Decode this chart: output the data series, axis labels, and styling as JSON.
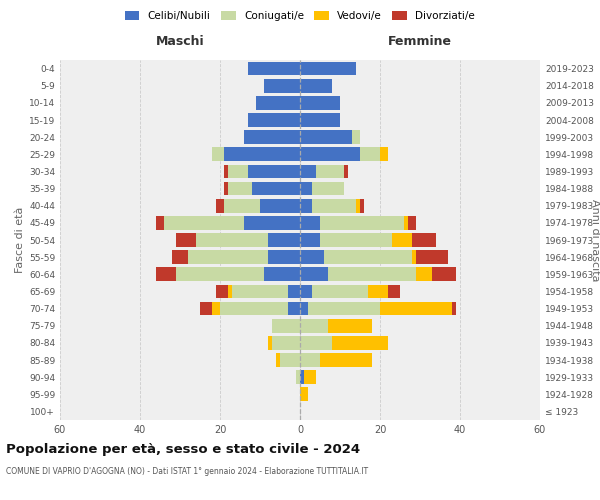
{
  "age_groups": [
    "100+",
    "95-99",
    "90-94",
    "85-89",
    "80-84",
    "75-79",
    "70-74",
    "65-69",
    "60-64",
    "55-59",
    "50-54",
    "45-49",
    "40-44",
    "35-39",
    "30-34",
    "25-29",
    "20-24",
    "15-19",
    "10-14",
    "5-9",
    "0-4"
  ],
  "birth_years": [
    "≤ 1923",
    "1924-1928",
    "1929-1933",
    "1934-1938",
    "1939-1943",
    "1944-1948",
    "1949-1953",
    "1954-1958",
    "1959-1963",
    "1964-1968",
    "1969-1973",
    "1974-1978",
    "1979-1983",
    "1984-1988",
    "1989-1993",
    "1994-1998",
    "1999-2003",
    "2004-2008",
    "2009-2013",
    "2014-2018",
    "2019-2023"
  ],
  "maschi": {
    "celibi": [
      0,
      0,
      0,
      0,
      0,
      0,
      3,
      3,
      9,
      8,
      8,
      14,
      10,
      12,
      13,
      19,
      14,
      13,
      11,
      9,
      13
    ],
    "coniugati": [
      0,
      0,
      1,
      5,
      7,
      7,
      17,
      14,
      22,
      20,
      18,
      20,
      9,
      6,
      5,
      3,
      0,
      0,
      0,
      0,
      0
    ],
    "vedovi": [
      0,
      0,
      0,
      1,
      1,
      0,
      2,
      1,
      0,
      0,
      0,
      0,
      0,
      0,
      0,
      0,
      0,
      0,
      0,
      0,
      0
    ],
    "divorziati": [
      0,
      0,
      0,
      0,
      0,
      0,
      3,
      3,
      5,
      4,
      5,
      2,
      2,
      1,
      1,
      0,
      0,
      0,
      0,
      0,
      0
    ]
  },
  "femmine": {
    "nubili": [
      0,
      0,
      1,
      0,
      0,
      0,
      2,
      3,
      7,
      6,
      5,
      5,
      3,
      3,
      4,
      15,
      13,
      10,
      10,
      8,
      14
    ],
    "coniugate": [
      0,
      0,
      0,
      5,
      8,
      7,
      18,
      14,
      22,
      22,
      18,
      21,
      11,
      8,
      7,
      5,
      2,
      0,
      0,
      0,
      0
    ],
    "vedove": [
      0,
      2,
      3,
      13,
      14,
      11,
      18,
      5,
      4,
      1,
      5,
      1,
      1,
      0,
      0,
      2,
      0,
      0,
      0,
      0,
      0
    ],
    "divorziate": [
      0,
      0,
      0,
      0,
      0,
      0,
      1,
      3,
      6,
      8,
      6,
      2,
      1,
      0,
      1,
      0,
      0,
      0,
      0,
      0,
      0
    ]
  },
  "colors": {
    "celibi_nubili": "#4472c4",
    "coniugati": "#c8daa4",
    "vedovi": "#ffc000",
    "divorziati": "#c0392b"
  },
  "xlim": 60,
  "title": "Popolazione per età, sesso e stato civile - 2024",
  "subtitle": "COMUNE DI VAPRIO D'AGOGNA (NO) - Dati ISTAT 1° gennaio 2024 - Elaborazione TUTTITALIA.IT",
  "header_maschi": "Maschi",
  "header_femmine": "Femmine",
  "ylabel_left": "Fasce di età",
  "ylabel_right": "Anni di nascita",
  "bg_color": "#efefef",
  "grid_color": "#cccccc",
  "legend_labels": [
    "Celibi/Nubili",
    "Coniugati/e",
    "Vedovi/e",
    "Divorziati/e"
  ]
}
